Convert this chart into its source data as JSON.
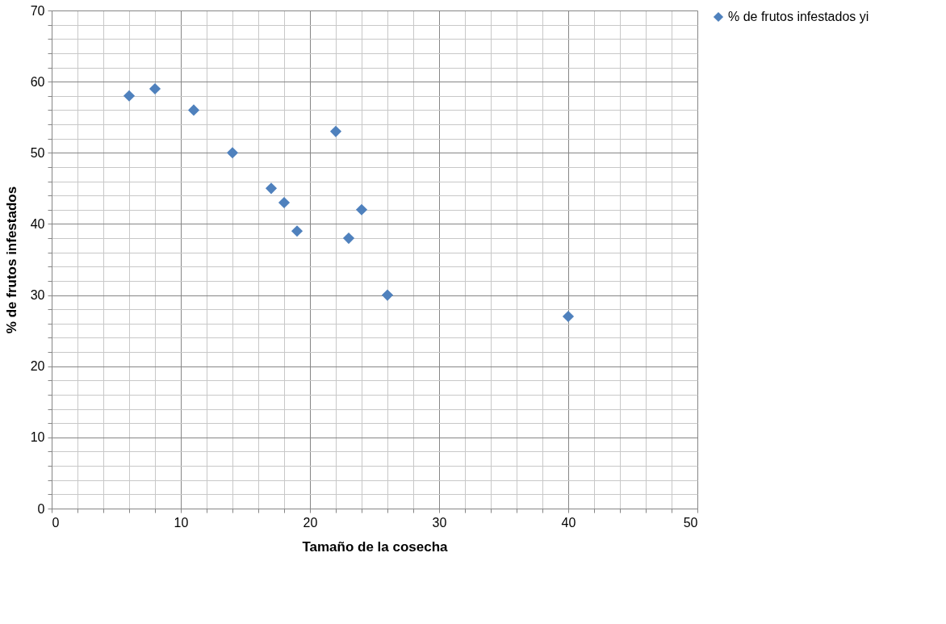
{
  "chart_data": {
    "type": "scatter",
    "xlabel": "Tamaño de la cosecha",
    "ylabel": "% de frutos infestados",
    "x": [
      6,
      8,
      11,
      14,
      17,
      18,
      19,
      22,
      23,
      24,
      26,
      40
    ],
    "series": [
      {
        "name": "% de frutos infestados  yi",
        "color": "#4f81bd",
        "values": [
          58,
          59,
          56,
          50,
          45,
          43,
          39,
          53,
          38,
          42,
          30,
          27
        ]
      }
    ],
    "xlim": [
      0,
      50
    ],
    "xticks": [
      0,
      {
        "value": 2,
        "label": null
      },
      {
        "value": 4,
        "label": null
      },
      {
        "value": 6,
        "label": null
      },
      {
        "value": 8,
        "label": null
      },
      10,
      {
        "value": 12,
        "label": null
      },
      {
        "value": 14,
        "label": null
      },
      {
        "value": 16,
        "label": null
      },
      {
        "value": 18,
        "label": null
      },
      20,
      {
        "value": 22,
        "label": null
      },
      {
        "value": 24,
        "label": null
      },
      {
        "value": 26,
        "label": null
      },
      {
        "value": 28,
        "label": null
      },
      30,
      {
        "value": 32,
        "label": null
      },
      {
        "value": 34,
        "label": null
      },
      {
        "value": 36,
        "label": null
      },
      {
        "value": 38,
        "label": null
      },
      40,
      {
        "value": 42,
        "label": null
      },
      {
        "value": 44,
        "label": null
      },
      {
        "value": 46,
        "label": null
      },
      {
        "value": 48,
        "label": null
      },
      50
    ],
    "ylim": [
      0,
      70
    ],
    "yticks": [
      0,
      {
        "value": 2,
        "label": null
      },
      {
        "value": 4,
        "label": null
      },
      {
        "value": 6,
        "label": null
      },
      {
        "value": 8,
        "label": null
      },
      10,
      {
        "value": 12,
        "label": null
      },
      {
        "value": 14,
        "label": null
      },
      {
        "value": 16,
        "label": null
      },
      {
        "value": 18,
        "label": null
      },
      20,
      {
        "value": 22,
        "label": null
      },
      {
        "value": 24,
        "label": null
      },
      {
        "value": 26,
        "label": null
      },
      {
        "value": 28,
        "label": null
      },
      30,
      {
        "value": 32,
        "label": null
      },
      {
        "value": 34,
        "label": null
      },
      {
        "value": 36,
        "label": null
      },
      {
        "value": 38,
        "label": null
      },
      40,
      {
        "value": 42,
        "label": null
      },
      {
        "value": 44,
        "label": null
      },
      {
        "value": 46,
        "label": null
      },
      {
        "value": 48,
        "label": null
      },
      50,
      {
        "value": 52,
        "label": null
      },
      {
        "value": 54,
        "label": null
      },
      {
        "value": 56,
        "label": null
      },
      {
        "value": 58,
        "label": null
      },
      60,
      {
        "value": 62,
        "label": null
      },
      {
        "value": 64,
        "label": null
      },
      {
        "value": 66,
        "label": null
      },
      {
        "value": 68,
        "label": null
      },
      70
    ],
    "grid": true,
    "legend": "right",
    "marker": "diamond"
  }
}
